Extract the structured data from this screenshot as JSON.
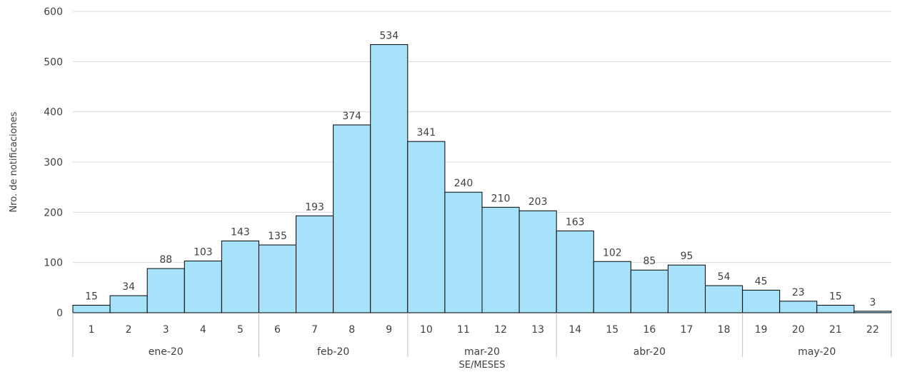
{
  "chart_data": {
    "type": "bar",
    "categories": [
      "1",
      "2",
      "3",
      "4",
      "5",
      "6",
      "7",
      "8",
      "9",
      "10",
      "11",
      "12",
      "13",
      "14",
      "15",
      "16",
      "17",
      "18",
      "19",
      "20",
      "21",
      "22"
    ],
    "values": [
      15,
      34,
      88,
      103,
      143,
      135,
      193,
      374,
      534,
      341,
      240,
      210,
      203,
      163,
      102,
      85,
      95,
      54,
      45,
      23,
      15,
      3
    ],
    "groups": [
      {
        "label": "ene-20",
        "start": 0,
        "count": 5
      },
      {
        "label": "feb-20",
        "start": 5,
        "count": 4
      },
      {
        "label": "mar-20",
        "start": 9,
        "count": 4
      },
      {
        "label": "abr-20",
        "start": 13,
        "count": 5
      },
      {
        "label": "may-20",
        "start": 18,
        "count": 4
      }
    ],
    "ylim": [
      0,
      600
    ],
    "yticks": [
      0,
      100,
      200,
      300,
      400,
      500,
      600
    ],
    "xlabel": "SE/MESES",
    "ylabel": "Nro. de notificaciones",
    "grid": true,
    "colors": {
      "bar": "#a6e3fa",
      "bar_border": "#000000",
      "grid": "#d9d9d9"
    }
  }
}
